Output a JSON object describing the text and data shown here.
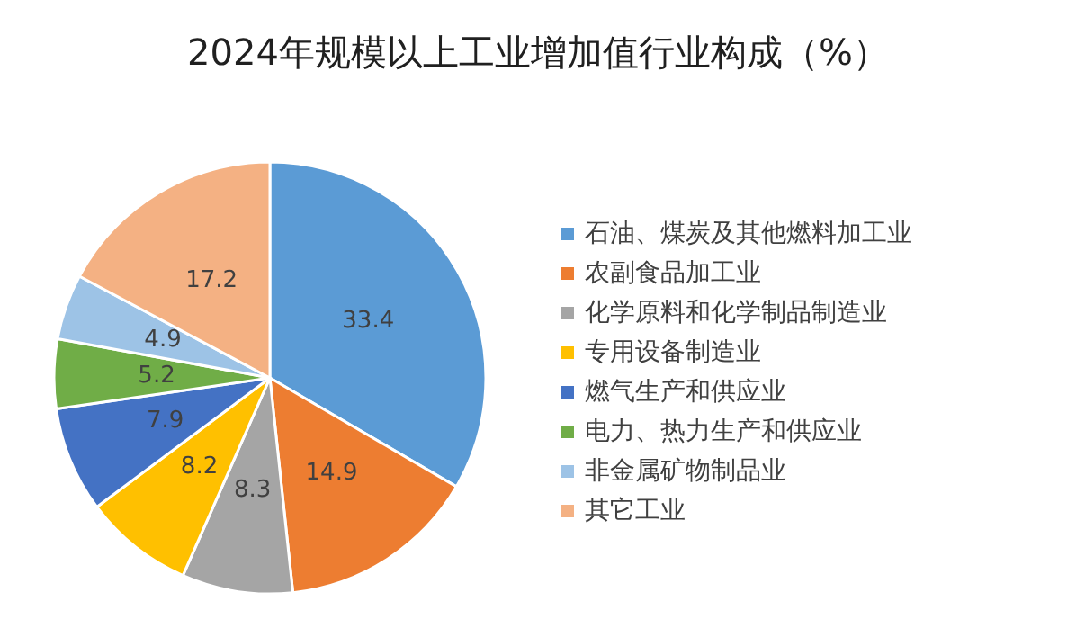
{
  "chart_data": {
    "type": "pie",
    "title": "2024年规模以上工业增加值行业构成（%）",
    "categories": [
      "石油、煤炭及其他燃料加工业",
      "农副食品加工业",
      "化学原料和化学制品制造业",
      "专用设备制造业",
      "燃气生产和供应业",
      "电力、热力生产和供应业",
      "非金属矿物制品业",
      "其它工业"
    ],
    "values": [
      33.4,
      14.9,
      8.3,
      8.2,
      7.9,
      5.2,
      4.9,
      17.2
    ],
    "colors": [
      "#5b9bd5",
      "#ed7d31",
      "#a5a5a5",
      "#ffc000",
      "#4472c4",
      "#70ad47",
      "#9dc3e6",
      "#f4b183"
    ],
    "data_labels": true,
    "legend": "right"
  }
}
